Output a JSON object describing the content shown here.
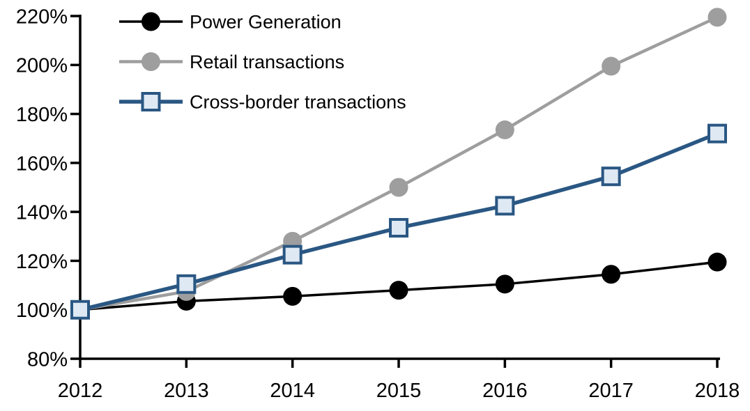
{
  "chart_data": {
    "type": "line",
    "title": "",
    "xlabel": "",
    "ylabel": "",
    "categories": [
      "2012",
      "2013",
      "2014",
      "2015",
      "2016",
      "2017",
      "2018"
    ],
    "series": [
      {
        "name": "Power Generation",
        "color": "#000000",
        "marker": "circle",
        "marker_fill": "#000000",
        "line_width": 3.5,
        "values": [
          100,
          103.5,
          105.5,
          108,
          110.5,
          114.5,
          119.5
        ]
      },
      {
        "name": "Retail transactions",
        "color": "#9E9E9E",
        "marker": "circle",
        "marker_fill": "#9E9E9E",
        "line_width": 4.5,
        "values": [
          100,
          107.5,
          128,
          150,
          173.5,
          199.5,
          219.5
        ]
      },
      {
        "name": "Cross-border transactions",
        "color": "#2A5783",
        "marker": "square",
        "marker_fill": "#DEE9F4",
        "line_width": 5.5,
        "values": [
          100,
          110.5,
          122.5,
          133.5,
          142.5,
          154.5,
          172
        ]
      }
    ],
    "ylim": [
      80,
      220
    ],
    "ytick_step": 20,
    "ytick_labels": [
      "80%",
      "100%",
      "120%",
      "140%",
      "160%",
      "180%",
      "200%",
      "220%"
    ],
    "grid": false,
    "legend_position": "top-left",
    "axis_color": "#000000"
  }
}
